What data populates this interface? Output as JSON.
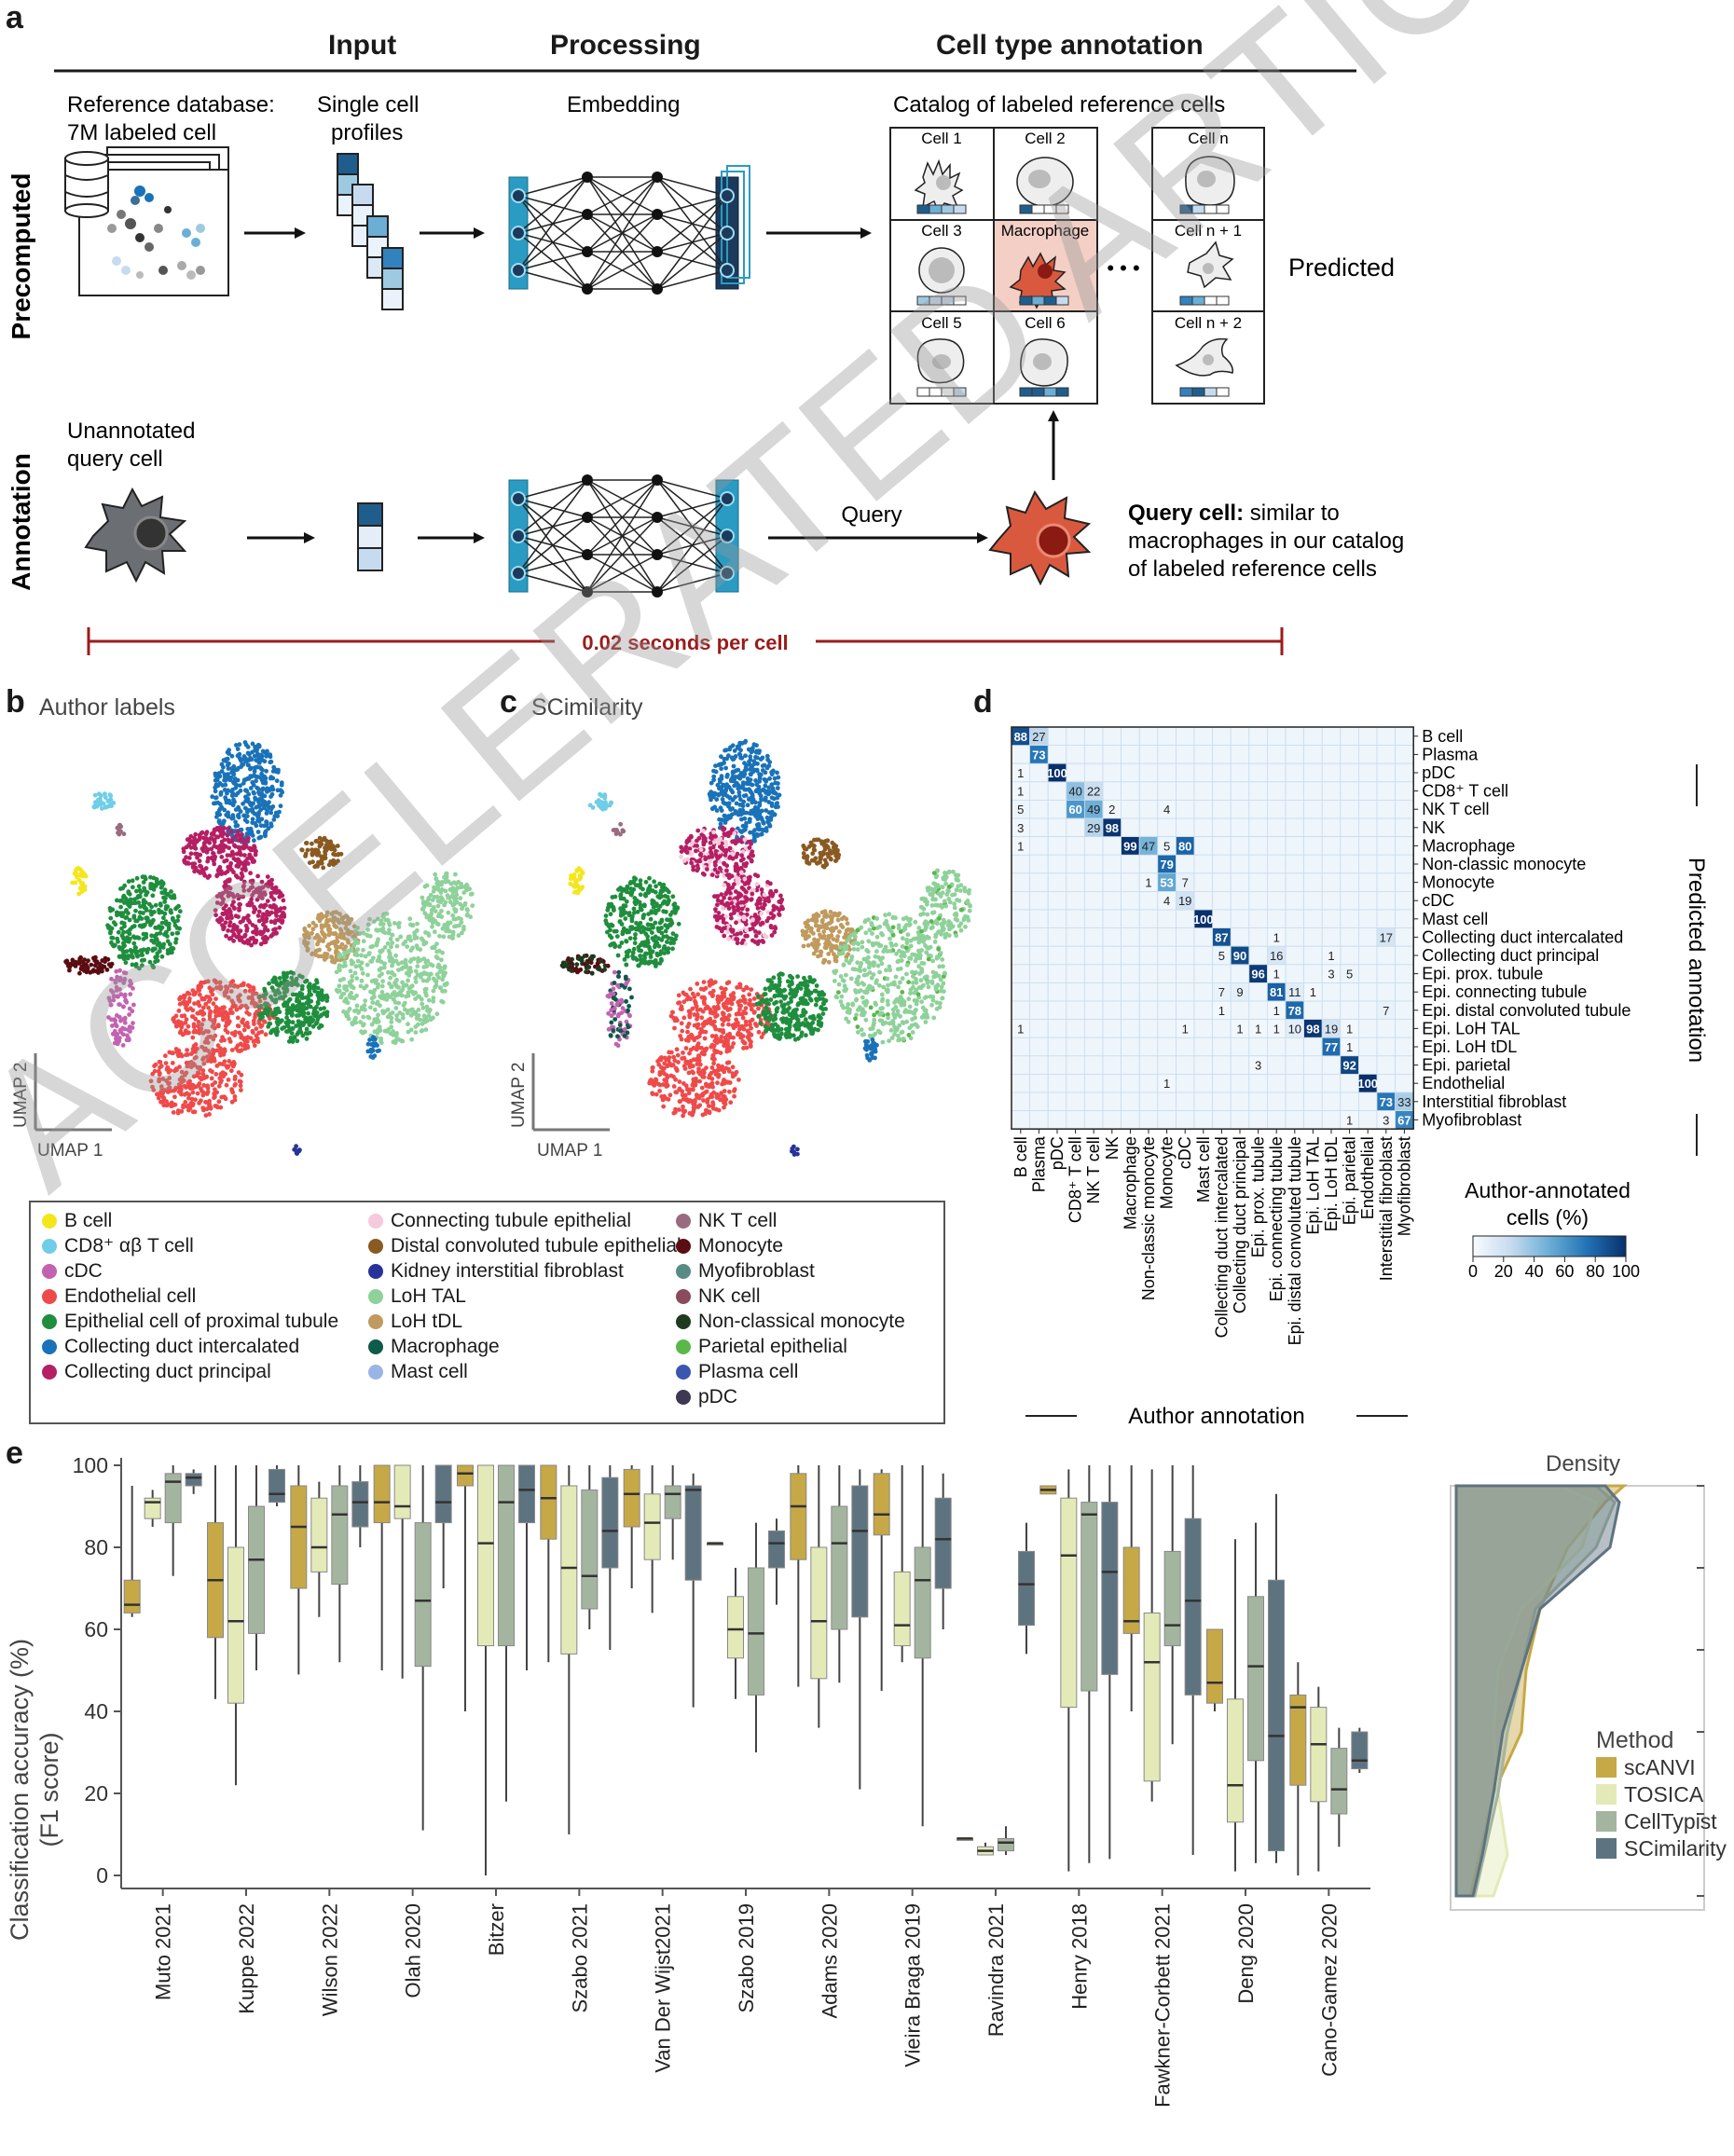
{
  "panel_a": {
    "letter": "a",
    "col_input": "Input",
    "col_processing": "Processing",
    "col_annotation": "Cell type annotation",
    "row_precomputed": "Precomputed",
    "row_annotation": "Annotation",
    "ref_db_line1": "Reference database:",
    "ref_db_line2": "7M labeled cell",
    "single_cell_line1": "Single cell",
    "single_cell_line2": "profiles",
    "embedding": "Embedding",
    "catalog_title": "Catalog of labeled reference cells",
    "cells": [
      "Cell 1",
      "Cell 2",
      "Cell 3",
      "Macrophage",
      "Cell 5",
      "Cell 6"
    ],
    "cell_n": "Cell n",
    "cell_n1": "Cell n + 1",
    "cell_n2": "Cell n + 2",
    "ellipsis": "• • •",
    "predicted": "Predicted",
    "unannotated_line1": "Unannotated",
    "unannotated_line2": "query cell",
    "query": "Query",
    "query_cell_bold": "Query cell:",
    "query_cell_rest1": "similar to",
    "query_cell_line2": "macrophages in our catalog",
    "query_cell_line3": "of labeled reference cells",
    "timing": "0.02 seconds per cell",
    "colors": {
      "accent_blue": "#2a9bc3",
      "dark_navy": "#1b3a5c",
      "timing_red": "#9b1b1b",
      "macrophage_bg": "#f3cfc5",
      "query_cell": "#d9593f"
    }
  },
  "panel_b": {
    "letter": "b",
    "title": "Author labels",
    "umap1": "UMAP 1",
    "umap2": "UMAP 2"
  },
  "panel_c": {
    "letter": "c",
    "title": "SCimilarity",
    "umap1": "UMAP 1",
    "umap2": "UMAP 2"
  },
  "legend": {
    "col1": [
      {
        "label": "B cell",
        "color": "#f5e61c"
      },
      {
        "label": "CD8⁺ αβ T cell",
        "color": "#6fcde8"
      },
      {
        "label": "cDC",
        "color": "#c263b0"
      },
      {
        "label": "Endothelial cell",
        "color": "#ef4a4a"
      },
      {
        "label": "Epithelial cell of proximal tubule",
        "color": "#1f8e3e"
      },
      {
        "label": "Collecting duct intercalated",
        "color": "#1a72b8"
      },
      {
        "label": "Collecting duct principal",
        "color": "#b51f63"
      }
    ],
    "col2": [
      {
        "label": "Connecting tubule epithelial",
        "color": "#f6c9dc"
      },
      {
        "label": "Distal convoluted tubule epithelial",
        "color": "#8a5a22"
      },
      {
        "label": "Kidney interstitial fibroblast",
        "color": "#26339a"
      },
      {
        "label": "LoH TAL",
        "color": "#8fd19a"
      },
      {
        "label": "LoH tDL",
        "color": "#c09a5e"
      },
      {
        "label": "Macrophage",
        "color": "#0e5a4b"
      },
      {
        "label": "Mast cell",
        "color": "#9bb4e6"
      }
    ],
    "col3": [
      {
        "label": "NK T cell",
        "color": "#9a6b7f"
      },
      {
        "label": "Monocyte",
        "color": "#5a0d12"
      },
      {
        "label": "Myofibroblast",
        "color": "#5a8a84"
      },
      {
        "label": "NK cell",
        "color": "#8a4b5d"
      },
      {
        "label": "Non-classical monocyte",
        "color": "#1f3a1f"
      },
      {
        "label": "Parietal epithelial",
        "color": "#5ab84a"
      },
      {
        "label": "Plasma cell",
        "color": "#3b56b0"
      },
      {
        "label": "pDC",
        "color": "#3e3852"
      }
    ]
  },
  "panel_d": {
    "letter": "d",
    "x_title": "Author annotation",
    "y_title": "Predicted annotation",
    "colorbar_title_line1": "Author-annotated",
    "colorbar_title_line2": "cells (%)",
    "colorbar_ticks": [
      "0",
      "20",
      "40",
      "60",
      "80",
      "100"
    ],
    "colorbar_colors": [
      "#f7fbff",
      "#c6dbef",
      "#6baed6",
      "#2171b5",
      "#08306b"
    ]
  },
  "panel_e": {
    "letter": "e",
    "density_title": "Density",
    "method_title": "Method"
  },
  "chart_data": [
    {
      "type": "heatmap",
      "title": "",
      "xlabel": "Author annotation",
      "ylabel": "Predicted annotation",
      "x_categories": [
        "B cell",
        "Plasma",
        "pDC",
        "CD8⁺ T cell",
        "NK T cell",
        "NK",
        "Macrophage",
        "Non-classic monocyte",
        "Monocyte",
        "cDC",
        "Mast cell",
        "Collecting duct intercalated",
        "Collecting duct principal",
        "Epi. prox. tubule",
        "Epi. connecting tubule",
        "Epi. distal convoluted tubule",
        "Epi. LoH TAL",
        "Epi. LoH tDL",
        "Epi. parietal",
        "Endothelial",
        "Interstitial fibroblast",
        "Myofibroblast"
      ],
      "y_categories": [
        "B cell",
        "Plasma",
        "pDC",
        "CD8⁺ T cell",
        "NK T cell",
        "NK",
        "Macrophage",
        "Non-classic monocyte",
        "Monocyte",
        "cDC",
        "Mast cell",
        "Collecting duct intercalated",
        "Collecting duct principal",
        "Epi. prox. tubule",
        "Epi. connecting tubule",
        "Epi. distal convoluted tubule",
        "Epi. LoH TAL",
        "Epi. LoH tDL",
        "Epi. parietal",
        "Endothelial",
        "Interstitial fibroblast",
        "Myofibroblast"
      ],
      "cells": [
        [
          0,
          0,
          88
        ],
        [
          0,
          1,
          27
        ],
        [
          1,
          1,
          73
        ],
        [
          2,
          0,
          1
        ],
        [
          2,
          2,
          100
        ],
        [
          3,
          0,
          1
        ],
        [
          3,
          3,
          40
        ],
        [
          3,
          4,
          22
        ],
        [
          4,
          0,
          5
        ],
        [
          4,
          3,
          60
        ],
        [
          4,
          4,
          49
        ],
        [
          4,
          5,
          2
        ],
        [
          4,
          8,
          4
        ],
        [
          5,
          0,
          3
        ],
        [
          5,
          4,
          29
        ],
        [
          5,
          5,
          98
        ],
        [
          6,
          0,
          1
        ],
        [
          6,
          6,
          99
        ],
        [
          6,
          7,
          47
        ],
        [
          6,
          8,
          5
        ],
        [
          6,
          9,
          80
        ],
        [
          7,
          8,
          79
        ],
        [
          8,
          7,
          1
        ],
        [
          8,
          8,
          53
        ],
        [
          8,
          9,
          7
        ],
        [
          9,
          8,
          4
        ],
        [
          9,
          9,
          19
        ],
        [
          10,
          10,
          100
        ],
        [
          11,
          11,
          87
        ],
        [
          11,
          14,
          1
        ],
        [
          11,
          20,
          17
        ],
        [
          12,
          11,
          5
        ],
        [
          12,
          12,
          90
        ],
        [
          12,
          14,
          16
        ],
        [
          12,
          17,
          1
        ],
        [
          13,
          13,
          96
        ],
        [
          13,
          14,
          1
        ],
        [
          13,
          17,
          3
        ],
        [
          13,
          18,
          5
        ],
        [
          14,
          11,
          7
        ],
        [
          14,
          12,
          9
        ],
        [
          14,
          14,
          81
        ],
        [
          14,
          15,
          11
        ],
        [
          14,
          16,
          1
        ],
        [
          15,
          11,
          1
        ],
        [
          15,
          14,
          1
        ],
        [
          15,
          15,
          78
        ],
        [
          15,
          20,
          7
        ],
        [
          16,
          0,
          1
        ],
        [
          16,
          9,
          1
        ],
        [
          16,
          12,
          1
        ],
        [
          16,
          13,
          1
        ],
        [
          16,
          14,
          1
        ],
        [
          16,
          15,
          10
        ],
        [
          16,
          16,
          98
        ],
        [
          16,
          17,
          19
        ],
        [
          16,
          18,
          1
        ],
        [
          17,
          17,
          77
        ],
        [
          17,
          18,
          1
        ],
        [
          18,
          13,
          3
        ],
        [
          18,
          18,
          92
        ],
        [
          19,
          8,
          1
        ],
        [
          19,
          19,
          100
        ],
        [
          20,
          20,
          73
        ],
        [
          20,
          21,
          33
        ],
        [
          21,
          18,
          1
        ],
        [
          21,
          20,
          3
        ],
        [
          21,
          21,
          67
        ]
      ],
      "colorbar_range": [
        0,
        100
      ]
    },
    {
      "type": "box",
      "title": "",
      "xlabel": "",
      "ylabel": "Classification accuracy (%) (F1 score)",
      "ylabel_line1": "Classification accuracy (%)",
      "ylabel_line2": "(F1 score)",
      "ylim": [
        0,
        100
      ],
      "yticks": [
        0,
        20,
        40,
        60,
        80,
        100
      ],
      "categories": [
        "Muto 2021",
        "Kuppe 2022",
        "Wilson 2022",
        "Olah 2020",
        "Bitzer",
        "Szabo 2021",
        "Van Der Wijst2021",
        "Szabo 2019",
        "Adams 2020",
        "Vieira Braga 2019",
        "Ravindra 2021",
        "Henry 2018",
        "Fawkner-Corbett 2021",
        "Deng 2020",
        "Cano-Gamez 2020"
      ],
      "series": [
        {
          "name": "scANVI",
          "color": "#c6a846",
          "boxes": [
            [
              63,
              64,
              66,
              72,
              95
            ],
            [
              43,
              58,
              72,
              86,
              100
            ],
            [
              49,
              70,
              85,
              95,
              100
            ],
            [
              50,
              86,
              91,
              100,
              100
            ],
            [
              40,
              95,
              98,
              100,
              100
            ],
            [
              52,
              82,
              92,
              100,
              100
            ],
            [
              70,
              85,
              93,
              99,
              100
            ],
            [
              81,
              81,
              81,
              81,
              81
            ],
            [
              46,
              77,
              90,
              98,
              100
            ],
            [
              45,
              83,
              88,
              98,
              99
            ],
            [
              9,
              9,
              9,
              9,
              9
            ],
            [
              93,
              93,
              94,
              95,
              95
            ],
            [
              40,
              59,
              62,
              80,
              100
            ],
            [
              40,
              42,
              47,
              60,
              60
            ],
            [
              0,
              22,
              41,
              44,
              52
            ]
          ]
        },
        {
          "name": "TOSICA",
          "color": "#e4eab7",
          "boxes": [
            [
              85,
              87,
              91,
              92,
              94
            ],
            [
              22,
              42,
              62,
              80,
              100
            ],
            [
              63,
              74,
              80,
              92,
              96
            ],
            [
              48,
              87,
              90,
              100,
              100
            ],
            [
              0,
              56,
              81,
              100,
              100
            ],
            [
              10,
              54,
              75,
              95,
              100
            ],
            [
              64,
              77,
              86,
              93,
              100
            ],
            [
              43,
              53,
              60,
              68,
              75
            ],
            [
              36,
              48,
              62,
              80,
              100
            ],
            [
              52,
              56,
              61,
              74,
              100
            ],
            [
              5,
              5,
              6,
              7,
              8
            ],
            [
              1,
              41,
              78,
              92,
              99
            ],
            [
              18,
              23,
              52,
              64,
              99
            ],
            [
              1,
              13,
              22,
              43,
              82
            ],
            [
              1,
              18,
              32,
              41,
              46
            ]
          ]
        },
        {
          "name": "CellTypist",
          "color": "#a4b59f",
          "boxes": [
            [
              73,
              86,
              96,
              98,
              100
            ],
            [
              50,
              59,
              77,
              90,
              100
            ],
            [
              52,
              71,
              88,
              95,
              100
            ],
            [
              11,
              51,
              67,
              86,
              100
            ],
            [
              18,
              56,
              91,
              100,
              100
            ],
            [
              60,
              65,
              73,
              94,
              100
            ],
            [
              77,
              87,
              93,
              95,
              100
            ],
            [
              30,
              44,
              59,
              75,
              86
            ],
            [
              47,
              60,
              81,
              90,
              100
            ],
            [
              12,
              53,
              72,
              80,
              100
            ],
            [
              5,
              6,
              8,
              9,
              12
            ],
            [
              3,
              45,
              88,
              91,
              100
            ],
            [
              32,
              56,
              61,
              79,
              100
            ],
            [
              3,
              28,
              51,
              68,
              86
            ],
            [
              7,
              15,
              21,
              31,
              36
            ]
          ]
        },
        {
          "name": "SCimilarity",
          "color": "#5e7380",
          "boxes": [
            [
              93,
              95,
              97,
              98,
              99
            ],
            [
              90,
              91,
              93,
              99,
              100
            ],
            [
              80,
              85,
              91,
              96,
              100
            ],
            [
              70,
              86,
              91,
              100,
              100
            ],
            [
              50,
              86,
              94,
              100,
              100
            ],
            [
              55,
              75,
              84,
              97,
              100
            ],
            [
              41,
              72,
              94,
              95,
              98
            ],
            [
              66,
              75,
              81,
              84,
              87
            ],
            [
              21,
              63,
              84,
              95,
              99
            ],
            [
              60,
              70,
              82,
              92,
              98
            ],
            [
              54,
              61,
              71,
              79,
              86
            ],
            [
              4,
              49,
              74,
              91,
              100
            ],
            [
              5,
              44,
              67,
              87,
              100
            ],
            [
              3,
              6,
              34,
              72,
              93
            ],
            [
              25,
              26,
              28,
              35,
              36
            ]
          ]
        }
      ]
    },
    {
      "type": "area",
      "title": "Density",
      "legend_title": "Method",
      "legend_placement": "right",
      "series": [
        {
          "name": "scANVI",
          "color": "#c6a846"
        },
        {
          "name": "TOSICA",
          "color": "#e4eab7"
        },
        {
          "name": "CellTypist",
          "color": "#a4b59f"
        },
        {
          "name": "SCimilarity",
          "color": "#5e7380"
        }
      ]
    }
  ],
  "watermark": "ACCELERATED ARTICLE PREVIEW"
}
